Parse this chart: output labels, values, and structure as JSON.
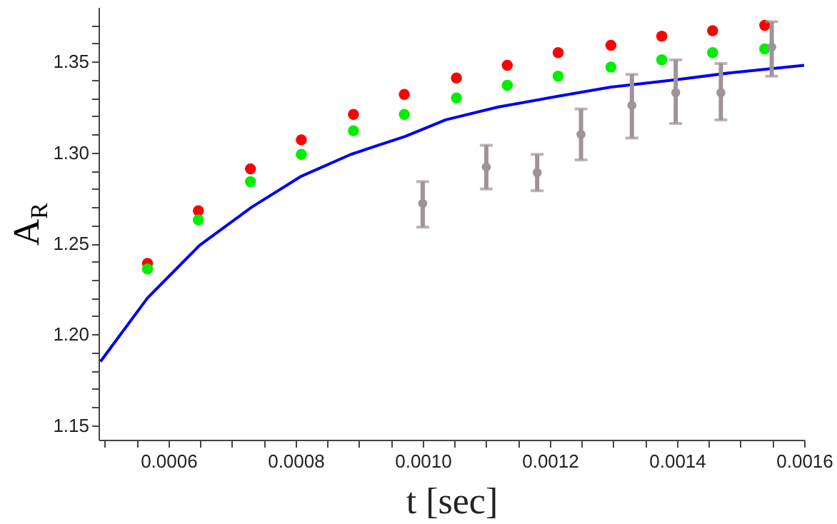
{
  "chart_data": {
    "type": "scatter",
    "xlabel": "t [sec]",
    "ylabel": "A$_{R}$",
    "marker": "circle",
    "grid": false,
    "xlim": [
      0.00049,
      0.0016
    ],
    "ylim": [
      1.142,
      1.38
    ],
    "xticks": [
      {
        "value": 0.0005,
        "label": null
      },
      {
        "value": 0.00055,
        "label": null
      },
      {
        "value": 0.0006,
        "label": "0.0006"
      },
      {
        "value": 0.00065,
        "label": null
      },
      {
        "value": 0.0007,
        "label": null
      },
      {
        "value": 0.00075,
        "label": null
      },
      {
        "value": 0.0008,
        "label": "0.0008"
      },
      {
        "value": 0.00085,
        "label": null
      },
      {
        "value": 0.0009,
        "label": null
      },
      {
        "value": 0.00095,
        "label": null
      },
      {
        "value": 0.001,
        "label": "0.0010"
      },
      {
        "value": 0.00105,
        "label": null
      },
      {
        "value": 0.0011,
        "label": null
      },
      {
        "value": 0.00115,
        "label": null
      },
      {
        "value": 0.0012,
        "label": "0.0012"
      },
      {
        "value": 0.00125,
        "label": null
      },
      {
        "value": 0.0013,
        "label": null
      },
      {
        "value": 0.00135,
        "label": null
      },
      {
        "value": 0.0014,
        "label": "0.0014"
      },
      {
        "value": 0.00145,
        "label": null
      },
      {
        "value": 0.0015,
        "label": null
      },
      {
        "value": 0.00155,
        "label": null
      },
      {
        "value": 0.0016,
        "label": "0.0016"
      }
    ],
    "yticks": [
      {
        "value": 1.15,
        "label": "1.15"
      },
      {
        "value": 1.16,
        "label": null
      },
      {
        "value": 1.17,
        "label": null
      },
      {
        "value": 1.18,
        "label": null
      },
      {
        "value": 1.19,
        "label": null
      },
      {
        "value": 1.2,
        "label": "1.20"
      },
      {
        "value": 1.21,
        "label": null
      },
      {
        "value": 1.22,
        "label": null
      },
      {
        "value": 1.23,
        "label": null
      },
      {
        "value": 1.24,
        "label": null
      },
      {
        "value": 1.25,
        "label": "1.25"
      },
      {
        "value": 1.26,
        "label": null
      },
      {
        "value": 1.27,
        "label": null
      },
      {
        "value": 1.28,
        "label": null
      },
      {
        "value": 1.29,
        "label": null
      },
      {
        "value": 1.3,
        "label": "1.30"
      },
      {
        "value": 1.31,
        "label": null
      },
      {
        "value": 1.32,
        "label": null
      },
      {
        "value": 1.33,
        "label": null
      },
      {
        "value": 1.34,
        "label": null
      },
      {
        "value": 1.35,
        "label": "1.35"
      },
      {
        "value": 1.36,
        "label": null
      },
      {
        "value": 1.37,
        "label": null
      }
    ],
    "series": [
      {
        "color": "#ff0000",
        "x": [
          0.000567,
          0.000647,
          0.000729,
          0.000809,
          0.000891,
          0.000971,
          0.001053,
          0.001133,
          0.001213,
          0.001296,
          0.001376,
          0.001456,
          0.001538
        ],
        "values": [
          1.239,
          1.268,
          1.291,
          1.307,
          1.321,
          1.332,
          1.341,
          1.348,
          1.355,
          1.359,
          1.364,
          1.367,
          1.37
        ]
      },
      {
        "color": "#00ee00",
        "x": [
          0.000567,
          0.000647,
          0.000729,
          0.000809,
          0.000891,
          0.000971,
          0.001053,
          0.001133,
          0.001213,
          0.001296,
          0.001376,
          0.001456,
          0.001538
        ],
        "values": [
          1.236,
          1.263,
          1.284,
          1.299,
          1.312,
          1.321,
          1.33,
          1.337,
          1.342,
          1.347,
          1.351,
          1.355,
          1.357
        ]
      },
      {
        "type": "line",
        "marker": "none",
        "color": "#0000ee",
        "x": [
          0.000493,
          0.000567,
          0.000649,
          0.000731,
          0.000809,
          0.000887,
          0.000973,
          0.001036,
          0.001118,
          0.001213,
          0.001296,
          0.001398,
          0.001487,
          0.0016
        ],
        "values": [
          1.185,
          1.22,
          1.249,
          1.27,
          1.287,
          1.299,
          1.309,
          1.318,
          1.325,
          1.331,
          1.336,
          1.34,
          1.344,
          1.348
        ]
      },
      {
        "color": "#a09398",
        "x": [
          0.001,
          0.0011,
          0.00118,
          0.001249,
          0.001329,
          0.001398,
          0.001469,
          0.001549
        ],
        "values": [
          1.272,
          1.292,
          1.289,
          1.31,
          1.326,
          1.333,
          1.333,
          1.358
        ],
        "errors": [
          [
            1.259,
            1.284
          ],
          [
            1.28,
            1.304
          ],
          [
            1.279,
            1.299
          ],
          [
            1.296,
            1.324
          ],
          [
            1.308,
            1.343
          ],
          [
            1.316,
            1.351
          ],
          [
            1.318,
            1.349
          ],
          [
            1.342,
            1.372
          ]
        ]
      }
    ]
  }
}
